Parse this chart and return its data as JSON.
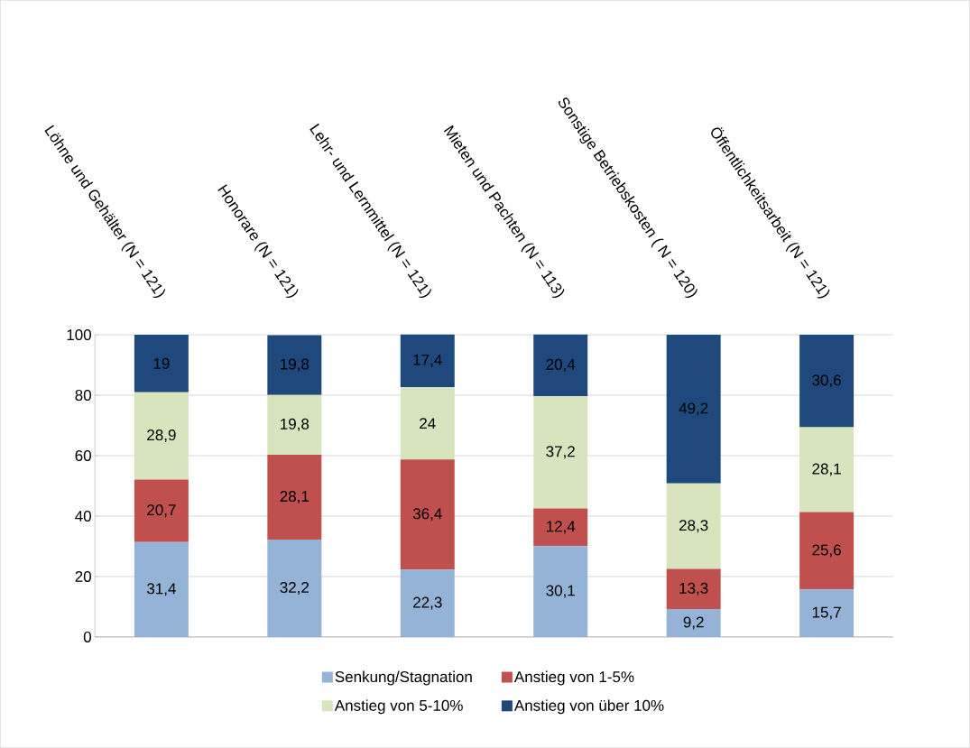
{
  "chart_data": {
    "type": "bar",
    "stacked": true,
    "categories": [
      "Löhne und Gehälter  (N = 121)",
      "Honorare (N = 121)",
      "Lehr- und Lernmittel (N = 121)",
      "Mieten und Pachten (N = 113)",
      "Sonstige Betriebskosten ( N = 120)",
      "Öffentlichkeitsarbeit  (N = 121)"
    ],
    "series": [
      {
        "name": "Senkung/Stagnation",
        "color": "#95b3d7",
        "values": [
          31.4,
          32.2,
          22.3,
          30.1,
          9.2,
          15.7
        ],
        "value_labels": [
          "31,4",
          "32,2",
          "22,3",
          "30,1",
          "9,2",
          "15,7"
        ]
      },
      {
        "name": "Anstieg von 1-5%",
        "color": "#c0504d",
        "values": [
          20.7,
          28.1,
          36.4,
          12.4,
          13.3,
          25.6
        ],
        "value_labels": [
          "20,7",
          "28,1",
          "36,4",
          "12,4",
          "13,3",
          "25,6"
        ]
      },
      {
        "name": "Anstieg von  5-10%",
        "color": "#d7e4bd",
        "values": [
          28.9,
          19.8,
          24,
          37.2,
          28.3,
          28.1
        ],
        "value_labels": [
          "28,9",
          "19,8",
          "24",
          "37,2",
          "28,3",
          "28,1"
        ]
      },
      {
        "name": "Anstieg von  über 10%",
        "color": "#1f497d",
        "values": [
          19,
          19.8,
          17.4,
          20.4,
          49.2,
          30.6
        ],
        "value_labels": [
          "19",
          "19,8",
          "17,4",
          "20,4",
          "49,2",
          "30,6"
        ]
      }
    ],
    "ylim": [
      0,
      100
    ],
    "yticks": [
      0,
      20,
      40,
      60,
      80,
      100
    ],
    "grid": "y",
    "legend": "bottom"
  }
}
